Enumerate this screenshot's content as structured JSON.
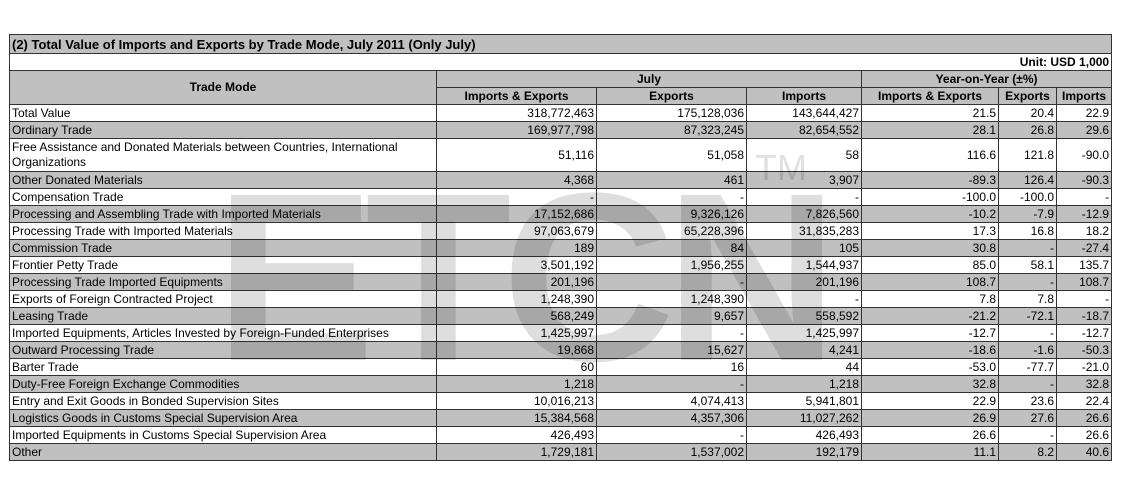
{
  "title": "(2) Total Value of Imports and Exports by Trade Mode, July 2011 (Only July)",
  "unit": "Unit: USD 1,000",
  "headers": {
    "trade_mode": "Trade Mode",
    "july": "July",
    "yoy": "Year-on-Year (±%)",
    "imports_exports": "Imports & Exports",
    "exports": "Exports",
    "imports": "Imports"
  },
  "watermark": {
    "text": "ETCN",
    "tm": "TM"
  },
  "rows": [
    {
      "mode": "Total Value",
      "ie": "318,772,463",
      "ex": "175,128,036",
      "im": "143,644,427",
      "yie": "21.5",
      "yex": "20.4",
      "yim": "22.9"
    },
    {
      "mode": "Ordinary Trade",
      "ie": "169,977,798",
      "ex": "87,323,245",
      "im": "82,654,552",
      "yie": "28.1",
      "yex": "26.8",
      "yim": "29.6"
    },
    {
      "mode": "Free Assistance and Donated Materials between Countries, International Organizations",
      "ie": "51,116",
      "ex": "51,058",
      "im": "58",
      "yie": "116.6",
      "yex": "121.8",
      "yim": "-90.0"
    },
    {
      "mode": "Other Donated Materials",
      "ie": "4,368",
      "ex": "461",
      "im": "3,907",
      "yie": "-89.3",
      "yex": "126.4",
      "yim": "-90.3"
    },
    {
      "mode": "Compensation Trade",
      "ie": "-",
      "ex": "-",
      "im": "-",
      "yie": "-100.0",
      "yex": "-100.0",
      "yim": "-"
    },
    {
      "mode": "Processing and Assembling Trade with Imported Materials",
      "ie": "17,152,686",
      "ex": "9,326,126",
      "im": "7,826,560",
      "yie": "-10.2",
      "yex": "-7.9",
      "yim": "-12.9"
    },
    {
      "mode": "Processing Trade with Imported Materials",
      "ie": "97,063,679",
      "ex": "65,228,396",
      "im": "31,835,283",
      "yie": "17.3",
      "yex": "16.8",
      "yim": "18.2"
    },
    {
      "mode": "Commission Trade",
      "ie": "189",
      "ex": "84",
      "im": "105",
      "yie": "30.8",
      "yex": "-",
      "yim": "-27.4"
    },
    {
      "mode": "Frontier Petty Trade",
      "ie": "3,501,192",
      "ex": "1,956,255",
      "im": "1,544,937",
      "yie": "85.0",
      "yex": "58.1",
      "yim": "135.7"
    },
    {
      "mode": "Processing Trade Imported Equipments",
      "ie": "201,196",
      "ex": "-",
      "im": "201,196",
      "yie": "108.7",
      "yex": "-",
      "yim": "108.7"
    },
    {
      "mode": "Exports of Foreign Contracted Project",
      "ie": "1,248,390",
      "ex": "1,248,390",
      "im": "-",
      "yie": "7.8",
      "yex": "7.8",
      "yim": "-"
    },
    {
      "mode": "Leasing Trade",
      "ie": "568,249",
      "ex": "9,657",
      "im": "558,592",
      "yie": "-21.2",
      "yex": "-72.1",
      "yim": "-18.7"
    },
    {
      "mode": "Imported Equipments, Articles Invested by Foreign-Funded Enterprises",
      "ie": "1,425,997",
      "ex": "-",
      "im": "1,425,997",
      "yie": "-12.7",
      "yex": "-",
      "yim": "-12.7"
    },
    {
      "mode": "Outward Processing Trade",
      "ie": "19,868",
      "ex": "15,627",
      "im": "4,241",
      "yie": "-18.6",
      "yex": "-1.6",
      "yim": "-50.3"
    },
    {
      "mode": "Barter Trade",
      "ie": "60",
      "ex": "16",
      "im": "44",
      "yie": "-53.0",
      "yex": "-77.7",
      "yim": "-21.0"
    },
    {
      "mode": "Duty-Free Foreign Exchange Commodities",
      "ie": "1,218",
      "ex": "-",
      "im": "1,218",
      "yie": "32.8",
      "yex": "-",
      "yim": "32.8"
    },
    {
      "mode": "Entry and Exit Goods in Bonded Supervision Sites",
      "ie": "10,016,213",
      "ex": "4,074,413",
      "im": "5,941,801",
      "yie": "22.9",
      "yex": "23.6",
      "yim": "22.4"
    },
    {
      "mode": "Logistics Goods in Customs Special Supervision Area",
      "ie": "15,384,568",
      "ex": "4,357,306",
      "im": "11,027,262",
      "yie": "26.9",
      "yex": "27.6",
      "yim": "26.6"
    },
    {
      "mode": "Imported Equipments in Customs Special Supervision Area",
      "ie": "426,493",
      "ex": "-",
      "im": "426,493",
      "yie": "26.6",
      "yex": "-",
      "yim": "26.6"
    },
    {
      "mode": "Other",
      "ie": "1,729,181",
      "ex": "1,537,002",
      "im": "192,179",
      "yie": "11.1",
      "yex": "8.2",
      "yim": "40.6"
    }
  ]
}
